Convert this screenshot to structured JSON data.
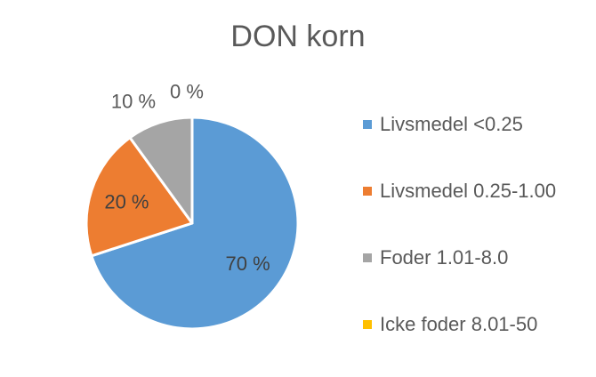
{
  "chart_data": {
    "type": "pie",
    "title": "DON korn",
    "categories": [
      "Livsmedel <0.25",
      "Livsmedel 0.25-1.00",
      "Foder 1.01-8.0",
      "Icke foder 8.01-50"
    ],
    "values": [
      70,
      20,
      10,
      0
    ],
    "data_labels": [
      "70 %",
      "20 %",
      "10 %",
      "0 %"
    ],
    "colors": [
      "#5B9BD5",
      "#ED7D31",
      "#A5A5A5",
      "#FFC000"
    ],
    "legend_position": "right"
  }
}
